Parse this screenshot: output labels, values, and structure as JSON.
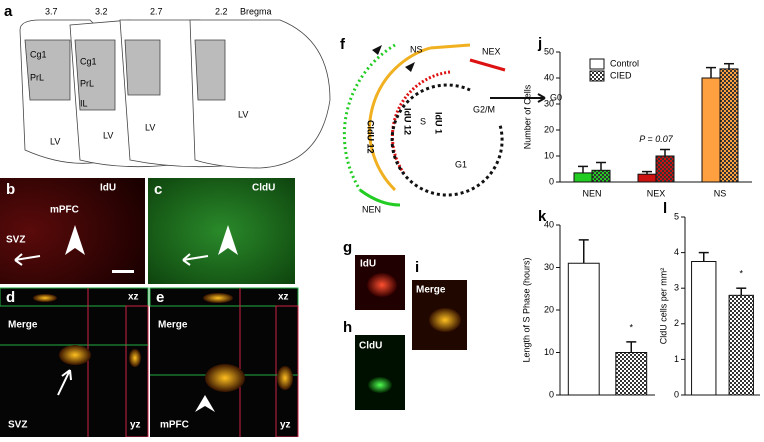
{
  "panels": {
    "a": {
      "letter": "a",
      "levels": [
        "3.7",
        "3.2",
        "2.7",
        "2.2"
      ],
      "bregma": "Bregma",
      "regions": [
        "Cg1",
        "PrL",
        "Cg1",
        "PrL",
        "IL"
      ],
      "ventricles": [
        "LV",
        "LV",
        "LV",
        "LV"
      ]
    },
    "b": {
      "letter": "b",
      "stain": "IdU",
      "labels": [
        "mPFC",
        "SVZ"
      ]
    },
    "c": {
      "letter": "c",
      "stain": "CldU"
    },
    "d": {
      "letter": "d",
      "labels": [
        "xz",
        "Merge",
        "SVZ",
        "yz"
      ]
    },
    "e": {
      "letter": "e",
      "labels": [
        "xz",
        "Merge",
        "mPFC",
        "yz"
      ]
    },
    "f": {
      "letter": "f",
      "labels": [
        "NS",
        "NEX",
        "NEN",
        "G0",
        "G2/M",
        "S",
        "G1",
        "CldU 12",
        "IdU 12",
        "IdU 1"
      ]
    },
    "g": {
      "letter": "g",
      "stain": "IdU"
    },
    "h": {
      "letter": "h",
      "stain": "CldU"
    },
    "i": {
      "letter": "i",
      "stain": "Merge"
    }
  },
  "chart_data": [
    {
      "type": "bar",
      "panel": "j",
      "ylabel": "Number of Cells",
      "categories": [
        "NEN",
        "NEX",
        "NS"
      ],
      "category_colors": [
        "#22cc22",
        "#cc1111",
        "#ffa040"
      ],
      "series": [
        {
          "name": "Control",
          "fill": "solid",
          "values": [
            3.5,
            3,
            40
          ],
          "errors": [
            2.5,
            1,
            4
          ]
        },
        {
          "name": "CIED",
          "fill": "checkered",
          "values": [
            4.5,
            10,
            43.5
          ],
          "errors": [
            3,
            2.5,
            2
          ]
        }
      ],
      "ylim": [
        0,
        50
      ],
      "yticks": [
        0,
        10,
        20,
        30,
        40,
        50
      ],
      "annotation": "P = 0.07"
    },
    {
      "type": "bar",
      "panel": "k",
      "ylabel": "Length of S Phase (hours)",
      "categories": [
        null,
        null
      ],
      "color": "#ffffff",
      "fills": [
        "solid",
        "checkered"
      ],
      "values": [
        31,
        10
      ],
      "errors": [
        5.5,
        2.5
      ],
      "ylim": [
        0,
        40
      ],
      "yticks": [
        0,
        10,
        20,
        30,
        40
      ],
      "annotation": "*"
    },
    {
      "type": "bar",
      "panel": "l",
      "ylabel": "CldU cells per mm²",
      "categories": [
        null,
        null
      ],
      "color": "#ffffff",
      "fills": [
        "solid",
        "checkered"
      ],
      "values": [
        3.75,
        2.8
      ],
      "errors": [
        0.25,
        0.2
      ],
      "ylim": [
        0,
        5
      ],
      "yticks": [
        0,
        1,
        2,
        3,
        4,
        5
      ],
      "annotation": "*"
    }
  ]
}
